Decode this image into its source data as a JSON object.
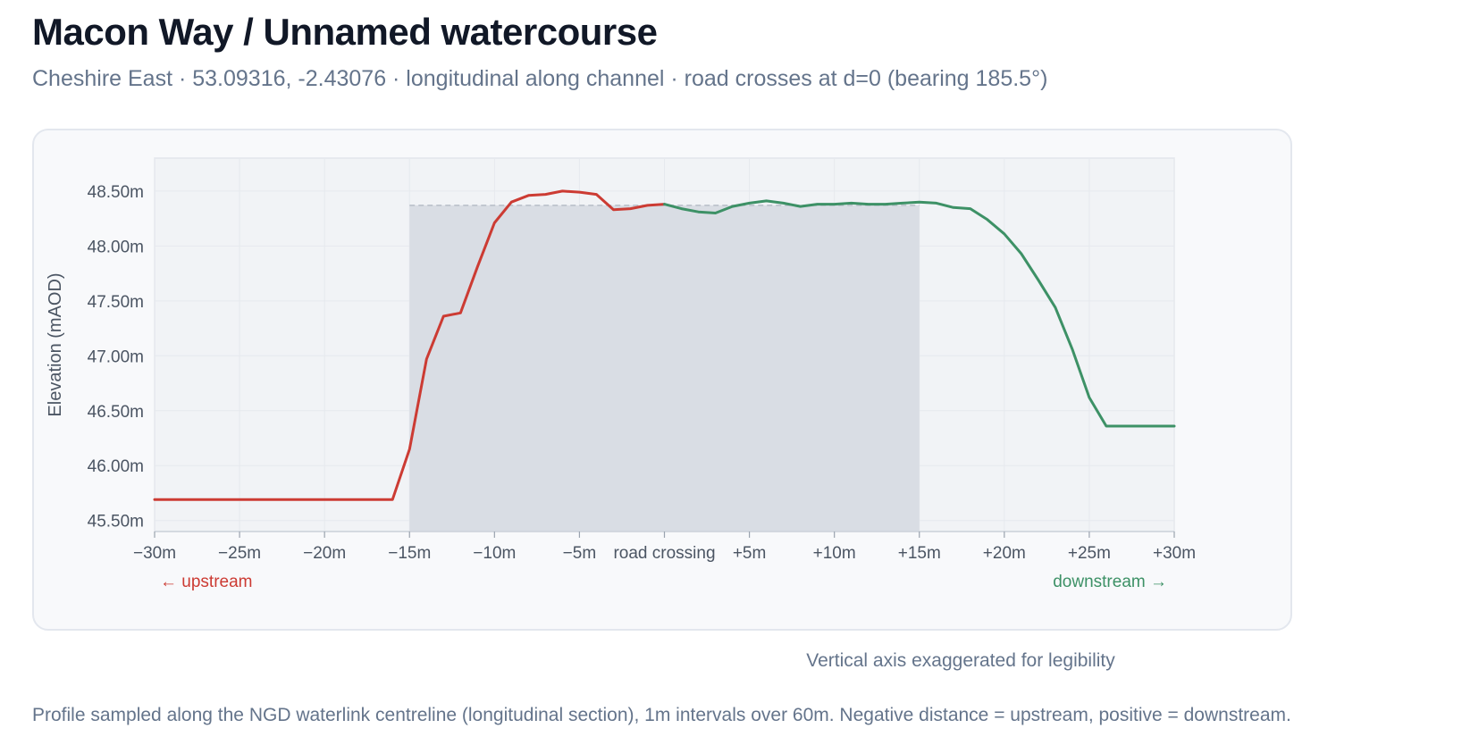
{
  "header": {
    "title": "Macon Way / Unnamed watercourse",
    "subtitle": "Cheshire East · 53.09316, -2.43076 · longitudinal along channel · road crosses at d=0 (bearing 185.5°)"
  },
  "notes": {
    "exaggeration": "Vertical axis exaggerated for legibility",
    "footer": "Profile sampled along the NGD waterlink centreline (longitudinal section), 1m intervals over 60m. Negative distance = upstream, positive = downstream."
  },
  "colors": {
    "upstream": "#cc3b33",
    "downstream": "#3d9166",
    "road_band": "#d9dde4",
    "plot_bg": "#f1f3f6",
    "grid": "#e6e9ee",
    "axis_text": "#4b5563"
  },
  "chart_data": {
    "type": "line",
    "ylabel": "Elevation (mAOD)",
    "xlim": [
      -30,
      30
    ],
    "ylim": [
      45.4,
      48.8
    ],
    "grid": true,
    "x_ticks": [
      {
        "value": -30,
        "label": "−30m"
      },
      {
        "value": -25,
        "label": "−25m"
      },
      {
        "value": -20,
        "label": "−20m"
      },
      {
        "value": -15,
        "label": "−15m"
      },
      {
        "value": -10,
        "label": "−10m"
      },
      {
        "value": -5,
        "label": "−5m"
      },
      {
        "value": 0,
        "label": "road crossing"
      },
      {
        "value": 5,
        "label": "+5m"
      },
      {
        "value": 10,
        "label": "+10m"
      },
      {
        "value": 15,
        "label": "+15m"
      },
      {
        "value": 20,
        "label": "+20m"
      },
      {
        "value": 25,
        "label": "+25m"
      },
      {
        "value": 30,
        "label": "+30m"
      }
    ],
    "y_ticks": [
      {
        "value": 45.5,
        "label": "45.50m"
      },
      {
        "value": 46.0,
        "label": "46.00m"
      },
      {
        "value": 46.5,
        "label": "46.50m"
      },
      {
        "value": 47.0,
        "label": "47.00m"
      },
      {
        "value": 47.5,
        "label": "47.50m"
      },
      {
        "value": 48.0,
        "label": "48.00m"
      },
      {
        "value": 48.5,
        "label": "48.50m"
      }
    ],
    "road_band": {
      "x_start": -15,
      "x_end": 15,
      "deck_level": 48.37
    },
    "direction_labels": {
      "upstream": "← upstream",
      "downstream": "downstream →"
    },
    "series": [
      {
        "id": "upstream",
        "x": [
          -30,
          -29,
          -28,
          -27,
          -26,
          -25,
          -24,
          -23,
          -22,
          -21,
          -20,
          -19,
          -18,
          -17,
          -16,
          -15,
          -14,
          -13,
          -12,
          -11,
          -10,
          -9,
          -8,
          -7,
          -6,
          -5,
          -4,
          -3,
          -2,
          -1,
          0
        ],
        "y": [
          45.69,
          45.69,
          45.69,
          45.69,
          45.69,
          45.69,
          45.69,
          45.69,
          45.69,
          45.69,
          45.69,
          45.69,
          45.69,
          45.69,
          45.69,
          46.15,
          46.97,
          47.36,
          47.39,
          47.81,
          48.21,
          48.4,
          48.46,
          48.47,
          48.5,
          48.49,
          48.47,
          48.33,
          48.34,
          48.37,
          48.38
        ]
      },
      {
        "id": "downstream",
        "x": [
          0,
          1,
          2,
          3,
          4,
          5,
          6,
          7,
          8,
          9,
          10,
          11,
          12,
          13,
          14,
          15,
          16,
          17,
          18,
          19,
          20,
          21,
          22,
          23,
          24,
          25,
          26,
          27,
          28,
          29,
          30
        ],
        "y": [
          48.38,
          48.34,
          48.31,
          48.3,
          48.36,
          48.39,
          48.41,
          48.39,
          48.36,
          48.38,
          48.38,
          48.39,
          48.38,
          48.38,
          48.39,
          48.4,
          48.39,
          48.35,
          48.34,
          48.24,
          48.11,
          47.93,
          47.69,
          47.44,
          47.06,
          46.62,
          46.36,
          46.36,
          46.36,
          46.36,
          46.36
        ]
      }
    ]
  }
}
